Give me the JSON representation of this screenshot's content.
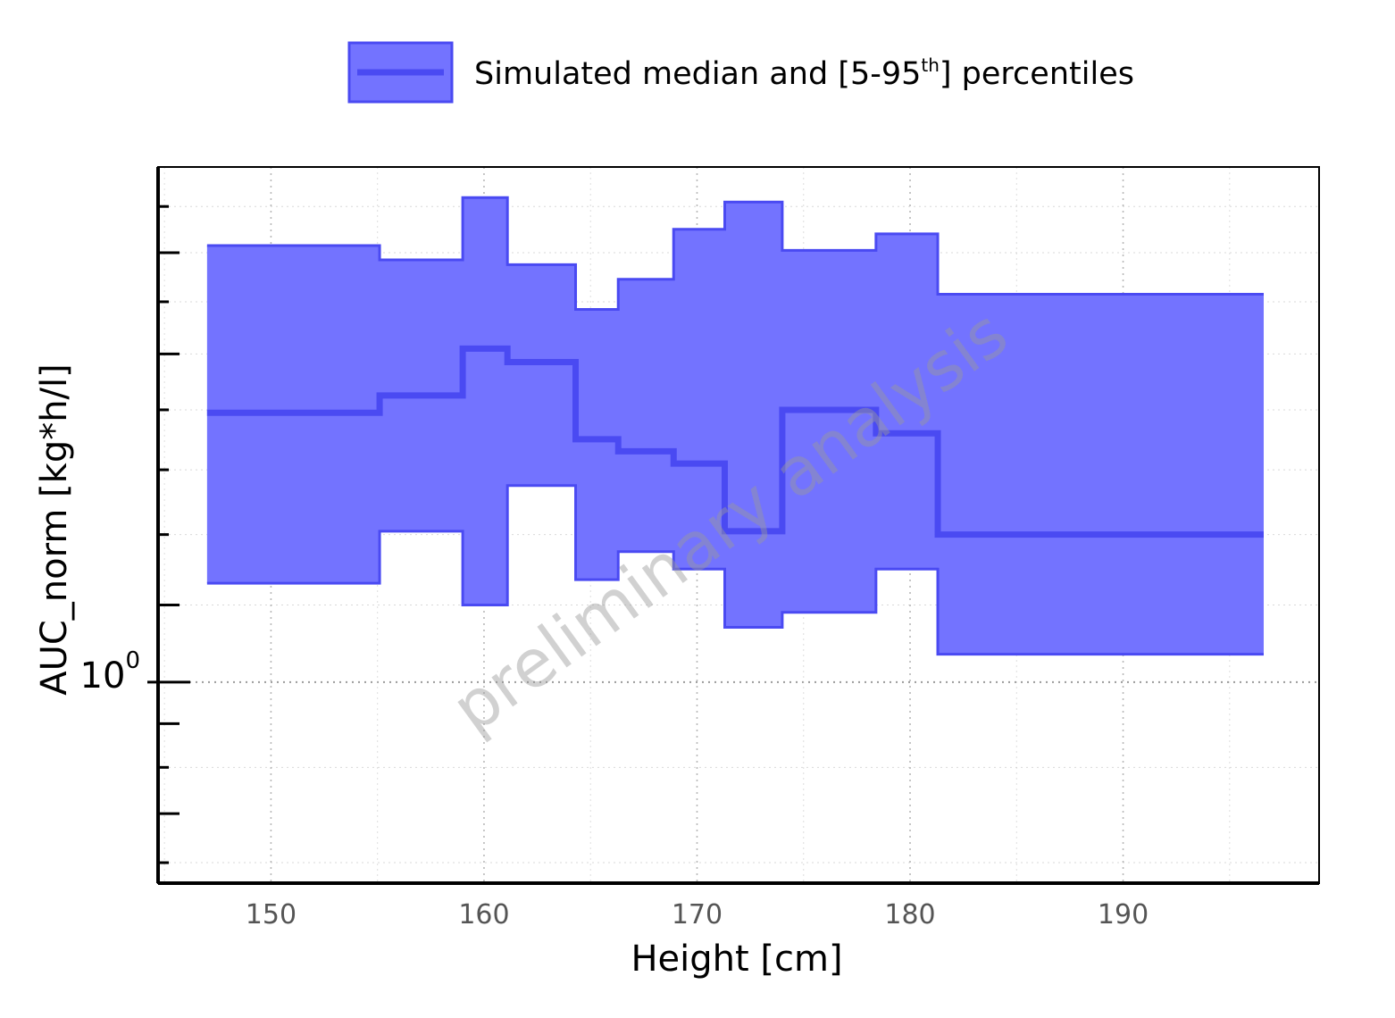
{
  "chart_data": {
    "type": "area",
    "xlabel": "Height [cm]",
    "ylabel": "AUC_norm [kg*h/l]",
    "xlim": [
      144.7,
      199.2
    ],
    "ylim": [
      0.78,
      1.89
    ],
    "yscale": "log",
    "x_ticks": [
      150,
      160,
      170,
      180,
      190
    ],
    "y_tick_labels": [
      {
        "base": "10",
        "exp": "0",
        "value": 1
      }
    ],
    "grid": true,
    "legend": {
      "position": "top-center",
      "label": "Simulated median and [5-95",
      "label_sup": "th",
      "label_end": "] percentiles"
    },
    "watermark": "preliminary analysis",
    "colors": {
      "band": "#7373ff",
      "median": "#4a4af2",
      "axis": "#000000",
      "grid": "#c8c8c8",
      "tick_text": "#555555"
    },
    "series": [
      {
        "name": "Simulated median and [5-95th] percentiles",
        "bins": [
          {
            "x0": 147.0,
            "x1": 155.1,
            "median": 1.395,
            "p5": 1.13,
            "p95": 1.715
          },
          {
            "x0": 155.1,
            "x1": 159.0,
            "median": 1.425,
            "p5": 1.205,
            "p95": 1.685
          },
          {
            "x0": 159.0,
            "x1": 161.1,
            "median": 1.51,
            "p5": 1.1,
            "p95": 1.82
          },
          {
            "x0": 161.1,
            "x1": 164.3,
            "median": 1.485,
            "p5": 1.275,
            "p95": 1.675
          },
          {
            "x0": 164.3,
            "x1": 166.3,
            "median": 1.35,
            "p5": 1.135,
            "p95": 1.585
          },
          {
            "x0": 166.3,
            "x1": 168.9,
            "median": 1.33,
            "p5": 1.175,
            "p95": 1.645
          },
          {
            "x0": 168.9,
            "x1": 171.3,
            "median": 1.31,
            "p5": 1.15,
            "p95": 1.75
          },
          {
            "x0": 171.3,
            "x1": 174.0,
            "median": 1.205,
            "p5": 1.07,
            "p95": 1.81
          },
          {
            "x0": 174.0,
            "x1": 178.4,
            "median": 1.4,
            "p5": 1.09,
            "p95": 1.705
          },
          {
            "x0": 178.4,
            "x1": 181.3,
            "median": 1.36,
            "p5": 1.15,
            "p95": 1.74
          },
          {
            "x0": 181.3,
            "x1": 196.6,
            "median": 1.2,
            "p5": 1.035,
            "p95": 1.615
          }
        ]
      }
    ]
  }
}
